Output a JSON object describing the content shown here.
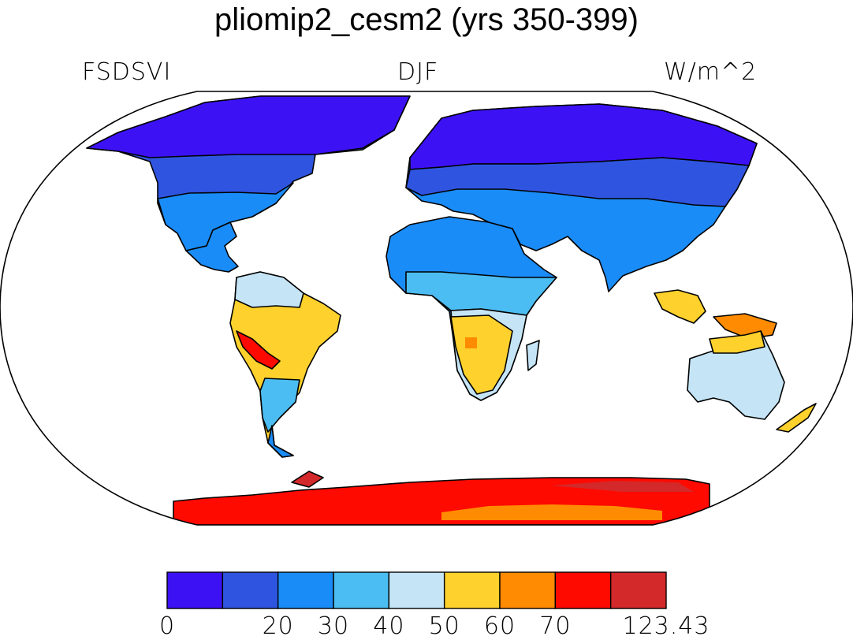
{
  "title": "pliomip2_cesm2 (yrs 350-399)",
  "labels": {
    "left": "FSDSVI",
    "center": "DJF",
    "right": "W/m^2"
  },
  "colorbar": {
    "colors": [
      "#3c12f5",
      "#2f55e0",
      "#1a8cf7",
      "#4cbdf2",
      "#c5e5f7",
      "#fed12c",
      "#fe8b01",
      "#fe0a00",
      "#d4292a"
    ],
    "tick_labels": [
      "0",
      "",
      "20",
      "30",
      "40",
      "50",
      "60",
      "70",
      "",
      "123.43"
    ]
  },
  "map": {
    "projection": "Robinson",
    "ocean": "#ffffff",
    "coast": "#000000"
  }
}
